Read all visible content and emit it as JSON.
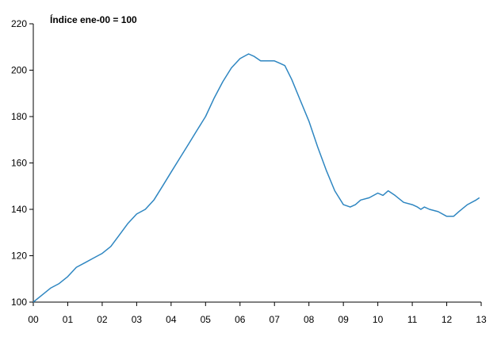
{
  "chart_data": {
    "type": "line",
    "annotation": "Índice ene-00 = 100",
    "xlabel": "",
    "ylabel": "",
    "x_tick_labels": [
      "00",
      "01",
      "02",
      "03",
      "04",
      "05",
      "06",
      "07",
      "08",
      "09",
      "10",
      "11",
      "12",
      "13"
    ],
    "x_range": [
      0,
      13
    ],
    "ylim": [
      100,
      220
    ],
    "y_ticks": [
      100,
      120,
      140,
      160,
      180,
      200,
      220
    ],
    "grid": false,
    "line_color": "#2e86c1",
    "series": [
      {
        "x": [
          0.0,
          0.25,
          0.5,
          0.75,
          1.0,
          1.25,
          1.5,
          1.75,
          2.0,
          2.25,
          2.5,
          2.75,
          3.0,
          3.25,
          3.5,
          3.75,
          4.0,
          4.25,
          4.5,
          4.75,
          5.0,
          5.25,
          5.5,
          5.75,
          6.0,
          6.25,
          6.4,
          6.6,
          6.75,
          7.0,
          7.15,
          7.3,
          7.5,
          7.75,
          8.0,
          8.25,
          8.5,
          8.75,
          9.0,
          9.2,
          9.35,
          9.5,
          9.75,
          10.0,
          10.15,
          10.3,
          10.5,
          10.75,
          11.0,
          11.15,
          11.25,
          11.35,
          11.5,
          11.75,
          12.0,
          12.2,
          12.35,
          12.6,
          12.85,
          12.95
        ],
        "values": [
          100,
          103,
          106,
          108,
          111,
          115,
          117,
          119,
          121,
          124,
          129,
          134,
          138,
          140,
          144,
          150,
          156,
          162,
          168,
          174,
          180,
          188,
          195,
          201,
          205,
          207,
          206,
          204,
          204,
          204,
          203,
          202,
          196,
          187,
          178,
          167,
          157,
          148,
          142,
          141,
          142,
          144,
          145,
          147,
          146,
          148,
          146,
          143,
          142,
          141,
          140,
          141,
          140,
          139,
          137,
          137,
          139,
          142,
          144,
          145
        ]
      }
    ]
  }
}
